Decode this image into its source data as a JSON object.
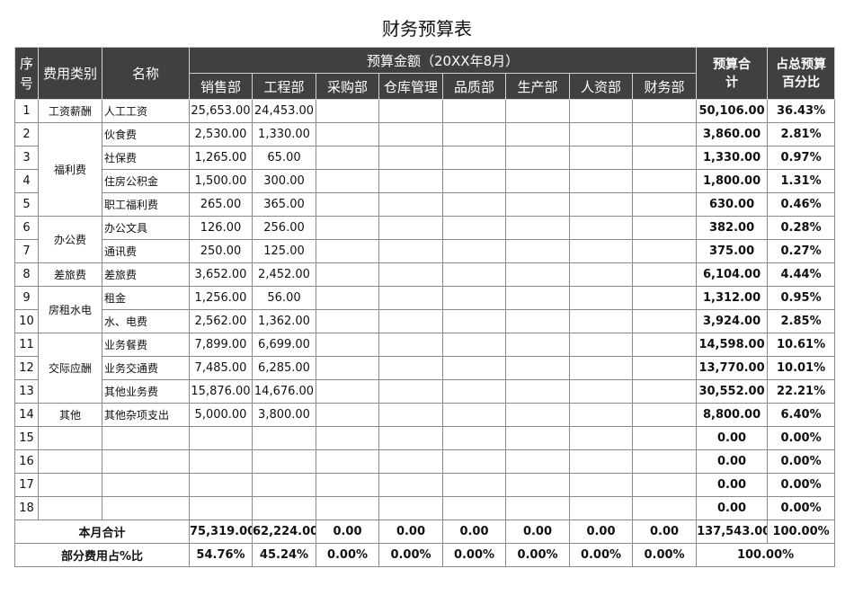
{
  "title": "财务预算表",
  "header": {
    "no": "序号",
    "category": "费用类别",
    "name": "名称",
    "budget": "预算金额（20XX年8月）",
    "departments": [
      "销售部",
      "工程部",
      "采购部",
      "仓库管理",
      "品质部",
      "生产部",
      "人资部",
      "财务部"
    ],
    "total": "预算合计",
    "percent": "占总预算百分比"
  },
  "categories": [
    "工资薪酬",
    "福利费",
    "办公费",
    "差旅费",
    "房租水电",
    "交际应酬",
    "其他"
  ],
  "rows": [
    {
      "no": "1",
      "name": "人工工资",
      "amounts": [
        "25,653.00",
        "24,453.00"
      ],
      "total": "50,106.00",
      "percent": "36.43%"
    },
    {
      "no": "2",
      "name": "伙食费",
      "amounts": [
        "2,530.00",
        "1,330.00"
      ],
      "total": "3,860.00",
      "percent": "2.81%"
    },
    {
      "no": "3",
      "name": "社保费",
      "amounts": [
        "1,265.00",
        "65.00"
      ],
      "total": "1,330.00",
      "percent": "0.97%"
    },
    {
      "no": "4",
      "name": "住房公积金",
      "amounts": [
        "1,500.00",
        "300.00"
      ],
      "total": "1,800.00",
      "percent": "1.31%"
    },
    {
      "no": "5",
      "name": "职工福利费",
      "amounts": [
        "265.00",
        "365.00"
      ],
      "total": "630.00",
      "percent": "0.46%"
    },
    {
      "no": "6",
      "name": "办公文具",
      "amounts": [
        "126.00",
        "256.00"
      ],
      "total": "382.00",
      "percent": "0.28%"
    },
    {
      "no": "7",
      "name": "通讯费",
      "amounts": [
        "250.00",
        "125.00"
      ],
      "total": "375.00",
      "percent": "0.27%"
    },
    {
      "no": "8",
      "name": "差旅费",
      "amounts": [
        "3,652.00",
        "2,452.00"
      ],
      "total": "6,104.00",
      "percent": "4.44%"
    },
    {
      "no": "9",
      "name": "租金",
      "amounts": [
        "1,256.00",
        "56.00"
      ],
      "total": "1,312.00",
      "percent": "0.95%"
    },
    {
      "no": "10",
      "name": "水、电费",
      "amounts": [
        "2,562.00",
        "1,362.00"
      ],
      "total": "3,924.00",
      "percent": "2.85%"
    },
    {
      "no": "11",
      "name": "业务餐费",
      "amounts": [
        "7,899.00",
        "6,699.00"
      ],
      "total": "14,598.00",
      "percent": "10.61%"
    },
    {
      "no": "12",
      "name": "业务交通费",
      "amounts": [
        "7,485.00",
        "6,285.00"
      ],
      "total": "13,770.00",
      "percent": "10.01%"
    },
    {
      "no": "13",
      "name": "其他业务费",
      "amounts": [
        "15,876.00",
        "14,676.00"
      ],
      "total": "30,552.00",
      "percent": "22.21%"
    },
    {
      "no": "14",
      "name": "其他杂项支出",
      "amounts": [
        "5,000.00",
        "3,800.00"
      ],
      "total": "8,800.00",
      "percent": "6.40%"
    },
    {
      "no": "15",
      "total": "0.00",
      "percent": "0.00%"
    },
    {
      "no": "16",
      "total": "0.00",
      "percent": "0.00%"
    },
    {
      "no": "17",
      "total": "0.00",
      "percent": "0.00%"
    },
    {
      "no": "18",
      "total": "0.00",
      "percent": "0.00%"
    }
  ],
  "month_total": {
    "label": "本月合计",
    "amounts": [
      "75,319.00",
      "62,224.00",
      "0.00",
      "0.00",
      "0.00",
      "0.00",
      "0.00",
      "0.00"
    ],
    "total": "137,543.00",
    "percent": "100.00%"
  },
  "share": {
    "label": "部分费用占%比",
    "amounts": [
      "54.76%",
      "45.24%",
      "0.00%",
      "0.00%",
      "0.00%",
      "0.00%",
      "0.00%",
      "0.00%"
    ],
    "total": "100.00%"
  }
}
